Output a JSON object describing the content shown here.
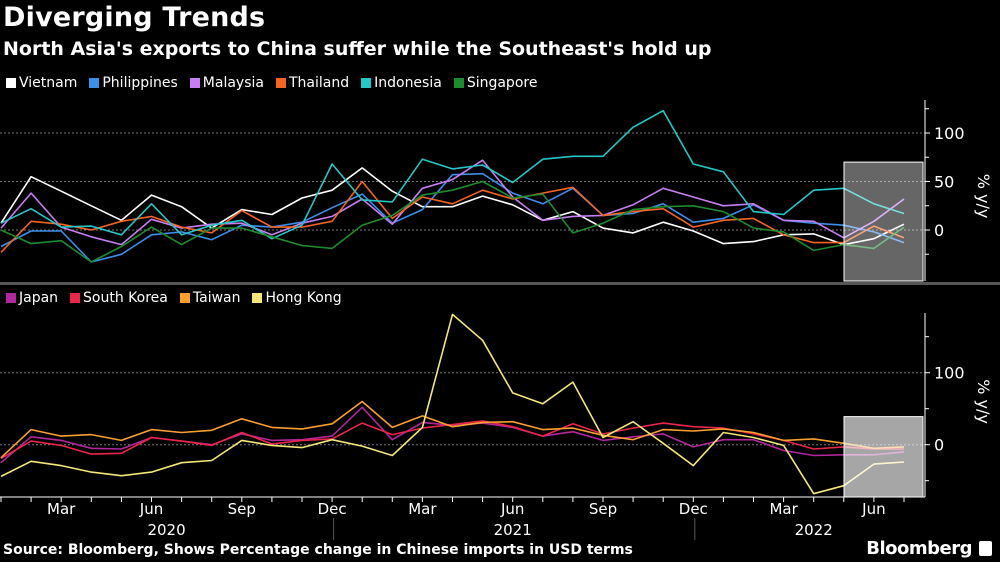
{
  "header": {
    "title": "Diverging Trends",
    "subtitle": "North Asia's exports to China suffer while the Southeast's hold up"
  },
  "footer": {
    "source": "Source: Bloomberg, Shows Percentage change in Chinese imports in USD terms",
    "brand": "Bloomberg"
  },
  "chart_data": [
    {
      "type": "line",
      "panel": "top",
      "ylabel": "% y/y",
      "ylim": [
        -51,
        134
      ],
      "yticks": [
        0,
        50,
        100
      ],
      "grid": true,
      "legend_position": "top-left",
      "x": [
        "2020-01",
        "2020-02",
        "2020-03",
        "2020-04",
        "2020-05",
        "2020-06",
        "2020-07",
        "2020-08",
        "2020-09",
        "2020-10",
        "2020-11",
        "2020-12",
        "2021-01",
        "2021-02",
        "2021-03",
        "2021-04",
        "2021-05",
        "2021-06",
        "2021-07",
        "2021-08",
        "2021-09",
        "2021-10",
        "2021-11",
        "2021-12",
        "2022-01",
        "2022-02",
        "2022-03",
        "2022-04",
        "2022-05",
        "2022-06",
        "2022-07"
      ],
      "highlight_range": [
        "2022-04",
        "2022-07"
      ],
      "series": [
        {
          "name": "Vietnam",
          "color": "#ffffff",
          "values": [
            7,
            55,
            40,
            25,
            10,
            36,
            24,
            2,
            21,
            16,
            33,
            41,
            64,
            40,
            24,
            24,
            35,
            26,
            10,
            19,
            2,
            -3,
            8,
            -1,
            -14,
            -12,
            -5,
            -4,
            -15,
            -9,
            6
          ]
        },
        {
          "name": "Philippines",
          "color": "#3d8ee8",
          "values": [
            -17,
            -1,
            -1,
            -33,
            -25,
            -5,
            -2,
            -10,
            5,
            3,
            8,
            23,
            37,
            7,
            21,
            57,
            58,
            38,
            27,
            43,
            15,
            17,
            27,
            8,
            12,
            26,
            10,
            7,
            5,
            -2,
            -13
          ]
        },
        {
          "name": "Malaysia",
          "color": "#c67ff0",
          "values": [
            2,
            38,
            3,
            -7,
            -15,
            11,
            2,
            6,
            7,
            -5,
            7,
            14,
            32,
            6,
            43,
            52,
            72,
            34,
            10,
            14,
            15,
            26,
            43,
            34,
            25,
            27,
            10,
            9,
            -8,
            9,
            32
          ]
        },
        {
          "name": "Thailand",
          "color": "#f26522",
          "values": [
            -23,
            9,
            6,
            0,
            9,
            14,
            3,
            -3,
            20,
            3,
            3,
            9,
            50,
            12,
            34,
            27,
            41,
            32,
            38,
            44,
            15,
            19,
            22,
            3,
            10,
            12,
            -5,
            -13,
            -13,
            4,
            -8
          ]
        },
        {
          "name": "Indonesia",
          "color": "#26c6c6",
          "values": [
            7,
            22,
            3,
            4,
            -5,
            27,
            -5,
            5,
            10,
            -9,
            5,
            68,
            31,
            29,
            73,
            63,
            67,
            49,
            73,
            76,
            76,
            106,
            123,
            68,
            60,
            19,
            16,
            41,
            43,
            27,
            17
          ]
        },
        {
          "name": "Singapore",
          "color": "#1e8c2e",
          "values": [
            0,
            -14,
            -11,
            -33,
            -17,
            3,
            -15,
            2,
            2,
            -7,
            -16,
            -19,
            5,
            15,
            36,
            41,
            50,
            33,
            37,
            -3,
            7,
            21,
            24,
            25,
            19,
            2,
            -2,
            -21,
            -15,
            -19,
            3
          ]
        }
      ],
      "xtick_labels": [
        "Mar",
        "Jun",
        "Sep",
        "Dec",
        "Mar",
        "Jun",
        "Sep",
        "Dec",
        "Mar",
        "Jun"
      ],
      "year_labels": [
        "2020",
        "2021",
        "2022"
      ]
    },
    {
      "type": "line",
      "panel": "bottom",
      "ylabel": "% y/y",
      "ylim": [
        -71,
        180
      ],
      "yticks": [
        0,
        100
      ],
      "grid": true,
      "legend_position": "top-left",
      "highlight_range": [
        "2022-04",
        "2022-07"
      ],
      "series": [
        {
          "name": "Japan",
          "color": "#b0289b",
          "values": [
            -25,
            11,
            6,
            -5,
            -6,
            10,
            5,
            0,
            15,
            6,
            7,
            12,
            52,
            7,
            31,
            27,
            30,
            24,
            12,
            18,
            6,
            11,
            15,
            -3,
            7,
            7,
            -8,
            -15,
            -14,
            -14,
            -10
          ]
        },
        {
          "name": "South Korea",
          "color": "#e8264a",
          "values": [
            -19,
            5,
            -1,
            -13,
            -12,
            10,
            5,
            -1,
            17,
            1,
            6,
            8,
            30,
            14,
            23,
            28,
            33,
            25,
            12,
            29,
            15,
            23,
            30,
            25,
            23,
            15,
            6,
            -6,
            -3,
            -6,
            -6
          ]
        },
        {
          "name": "Taiwan",
          "color": "#f7a030",
          "values": [
            -18,
            21,
            12,
            14,
            6,
            21,
            17,
            20,
            36,
            24,
            22,
            29,
            60,
            24,
            40,
            25,
            31,
            32,
            21,
            23,
            13,
            7,
            21,
            19,
            22,
            17,
            6,
            8,
            2,
            -5,
            -3
          ]
        },
        {
          "name": "Hong Kong",
          "color": "#f5e67a",
          "values": [
            -44,
            -23,
            -29,
            -38,
            -43,
            -38,
            -25,
            -22,
            6,
            -1,
            -4,
            7,
            -2,
            -15,
            24,
            181,
            145,
            72,
            57,
            87,
            10,
            32,
            2,
            -29,
            17,
            10,
            -1,
            -68,
            -57,
            -27,
            -24
          ]
        }
      ]
    }
  ]
}
